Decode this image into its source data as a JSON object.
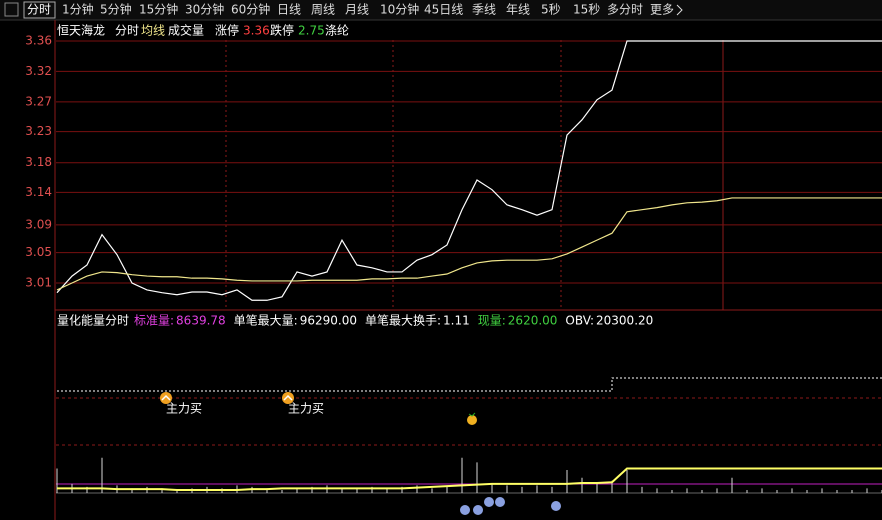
{
  "tabs": [
    "分时",
    "1分钟",
    "5分钟",
    "15分钟",
    "30分钟",
    "60分钟",
    "日线",
    "周线",
    "月线",
    "10分钟",
    "45日线",
    "季线",
    "年线",
    "5秒",
    "15秒",
    "多分时",
    "更多"
  ],
  "header": {
    "name": "恒天海龙",
    "volume_label": "成交量",
    "limit_up_label": "涨停",
    "limit_up": 3.36,
    "limit_down_label": "跌停",
    "limit_down": 2.75,
    "sector": "涤纶"
  },
  "chart_data": [
    {
      "type": "line",
      "ylim": [
        2.971,
        3.369
      ],
      "yticks": [
        {
          "value": 3.01,
          "label": "3.01"
        },
        {
          "value": 3.054,
          "label": "3.05"
        },
        {
          "value": 3.094,
          "label": "3.09"
        },
        {
          "value": 3.141,
          "label": "3.14"
        },
        {
          "value": 3.184,
          "label": "3.18"
        },
        {
          "value": 3.229,
          "label": "3.23"
        },
        {
          "value": 3.272,
          "label": "3.27"
        },
        {
          "value": 3.316,
          "label": "3.32"
        },
        {
          "value": 3.36,
          "label": "3.36"
        }
      ],
      "series": [
        {
          "name": "分时",
          "color": "#ffffff",
          "values": [
            2.996,
            3.02,
            3.036,
            3.08,
            3.051,
            3.01,
            3.0,
            2.996,
            2.993,
            2.997,
            2.997,
            2.993,
            3.0,
            2.985,
            2.985,
            2.99,
            3.026,
            3.02,
            3.026,
            3.072,
            3.036,
            3.032,
            3.026,
            3.026,
            3.043,
            3.051,
            3.065,
            3.116,
            3.159,
            3.145,
            3.123,
            3.116,
            3.108,
            3.116,
            3.224,
            3.246,
            3.275,
            3.289,
            3.36,
            3.36,
            3.36,
            3.36,
            3.36,
            3.36,
            3.36,
            3.36,
            3.36,
            3.36,
            3.36,
            3.36,
            3.36,
            3.36,
            3.36,
            3.36,
            3.36,
            3.36
          ]
        },
        {
          "name": "均线",
          "color": "#f0e68c",
          "values": [
            3.0,
            3.01,
            3.02,
            3.026,
            3.025,
            3.022,
            3.02,
            3.019,
            3.019,
            3.017,
            3.017,
            3.016,
            3.014,
            3.013,
            3.013,
            3.013,
            3.013,
            3.014,
            3.014,
            3.014,
            3.014,
            3.016,
            3.016,
            3.017,
            3.017,
            3.02,
            3.023,
            3.032,
            3.039,
            3.042,
            3.043,
            3.043,
            3.043,
            3.045,
            3.052,
            3.062,
            3.072,
            3.082,
            3.113,
            3.116,
            3.119,
            3.123,
            3.126,
            3.127,
            3.129,
            3.133,
            3.133,
            3.133,
            3.133,
            3.133,
            3.133,
            3.133,
            3.133,
            3.133,
            3.133,
            3.133
          ]
        }
      ]
    },
    {
      "type": "bar",
      "title": "量化能量分时",
      "stats": [
        {
          "label": "标准量:",
          "value": "8639.78",
          "color": "#e040e0"
        },
        {
          "label": "单笔最大量:",
          "value": "96290.00",
          "color": "#ffffff"
        },
        {
          "label": "单笔最大换手:",
          "value": "1.11",
          "color": "#ffffff"
        },
        {
          "label": "现量:",
          "value": "2620.00",
          "color": "#40d040"
        },
        {
          "label": "OBV:",
          "value": "20300.20",
          "color": "#ffffff"
        }
      ],
      "ylim": [
        0,
        100
      ],
      "volume": {
        "color": "#d8d8d8",
        "values": [
          16,
          6,
          4,
          23,
          5,
          3,
          4,
          3,
          2,
          3,
          4,
          3,
          5,
          4,
          3,
          2,
          3,
          4,
          5,
          3,
          3,
          4,
          3,
          4,
          5,
          3,
          4,
          23,
          20,
          6,
          5,
          4,
          5,
          4,
          15,
          10,
          6,
          8,
          15,
          4,
          3,
          2,
          3,
          2,
          3,
          10,
          2,
          3,
          2,
          3,
          2,
          3,
          2,
          2,
          3,
          2
        ]
      },
      "energy": {
        "color": "#ffff66",
        "values": [
          3,
          3,
          3,
          3,
          2.5,
          2.5,
          2.5,
          2.5,
          2,
          2,
          2,
          2,
          2,
          2.5,
          2.5,
          3,
          3,
          3,
          3,
          3,
          3,
          3,
          3,
          3,
          3.5,
          4,
          4.5,
          5,
          5.5,
          6,
          6,
          6,
          6,
          6,
          6,
          6.5,
          6.5,
          7,
          16,
          16,
          16,
          16,
          16,
          16,
          16,
          16,
          16,
          16,
          16,
          16,
          16,
          16,
          16,
          16,
          16,
          16
        ]
      },
      "band": {
        "color": "#ffffff",
        "values": [
          66.7,
          66.7,
          66.7,
          66.7,
          66.7,
          66.7,
          66.7,
          66.7,
          66.7,
          66.7,
          66.7,
          66.7,
          66.7,
          66.7,
          66.7,
          66.7,
          66.7,
          66.7,
          66.7,
          66.7,
          66.7,
          66.7,
          66.7,
          66.7,
          66.7,
          66.7,
          66.7,
          66.7,
          66.7,
          66.7,
          66.7,
          66.7,
          66.7,
          66.7,
          66.7,
          66.7,
          66.7,
          66.7,
          75.2,
          75.2,
          75.2,
          75.2,
          75.2,
          75.2,
          75.2,
          75.2,
          75.2,
          75.2,
          75.2,
          75.2,
          75.2,
          75.2,
          75.2,
          75.2,
          75.2,
          75.2
        ]
      },
      "annotations": [
        "主力买",
        "主力买"
      ]
    }
  ]
}
